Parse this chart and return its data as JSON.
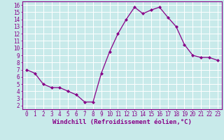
{
  "x": [
    0,
    1,
    2,
    3,
    4,
    5,
    6,
    7,
    8,
    9,
    10,
    11,
    12,
    13,
    14,
    15,
    16,
    17,
    18,
    19,
    20,
    21,
    22,
    23
  ],
  "y": [
    7.0,
    6.5,
    5.0,
    4.5,
    4.5,
    4.0,
    3.5,
    2.5,
    2.5,
    6.5,
    9.5,
    12.0,
    14.0,
    15.7,
    14.8,
    15.3,
    15.7,
    14.3,
    13.0,
    10.5,
    9.0,
    8.7,
    8.7,
    8.3
  ],
  "line_color": "#880088",
  "marker": "D",
  "marker_size": 2.0,
  "bg_color": "#c8eaea",
  "grid_color": "#ffffff",
  "xlabel": "Windchill (Refroidissement éolien,°C)",
  "xlim": [
    -0.5,
    23.5
  ],
  "ylim": [
    1.5,
    16.5
  ],
  "yticks": [
    2,
    3,
    4,
    5,
    6,
    7,
    8,
    9,
    10,
    11,
    12,
    13,
    14,
    15,
    16
  ],
  "xticks": [
    0,
    1,
    2,
    3,
    4,
    5,
    6,
    7,
    8,
    9,
    10,
    11,
    12,
    13,
    14,
    15,
    16,
    17,
    18,
    19,
    20,
    21,
    22,
    23
  ],
  "tick_fontsize": 5.5,
  "xlabel_fontsize": 6.5,
  "spine_color": "#880088"
}
